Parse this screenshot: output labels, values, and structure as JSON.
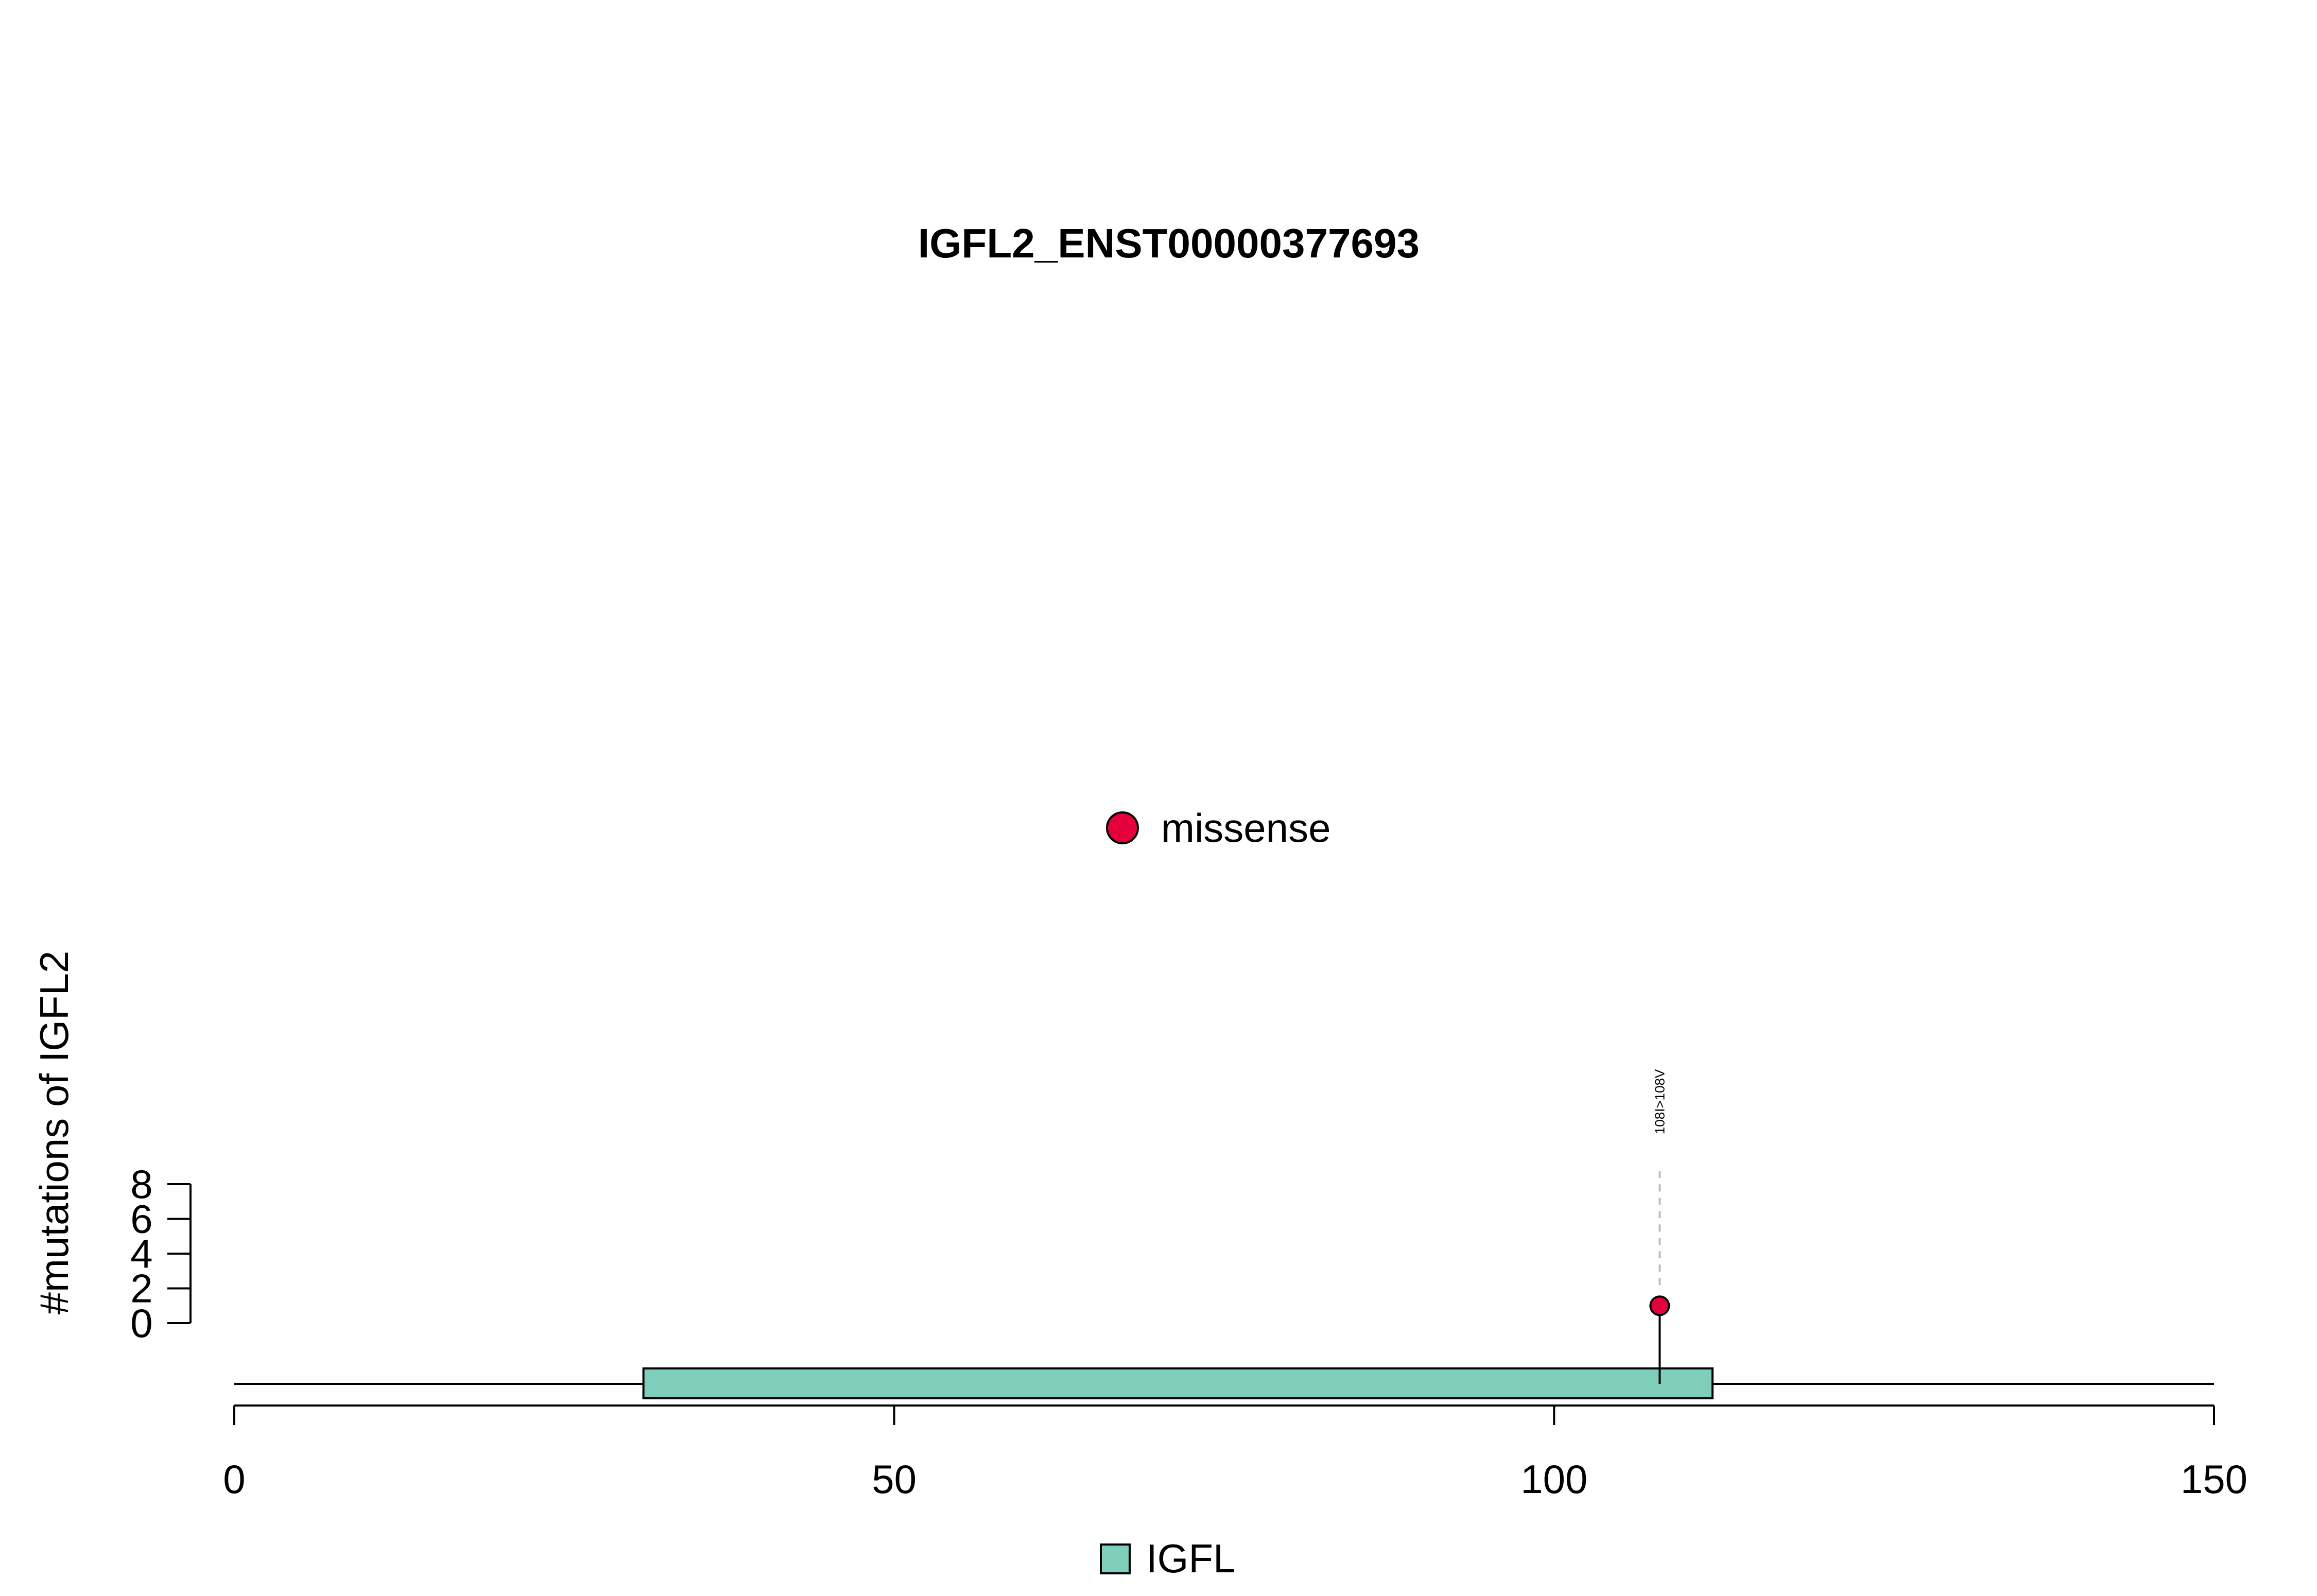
{
  "chart_data": {
    "type": "lollipop",
    "title": "IGFL2_ENST00000377693",
    "ylabel": "#mutations of IGFL2",
    "xlim": [
      0,
      150
    ],
    "x_ticks": [
      0,
      50,
      100,
      150
    ],
    "ylim": [
      0,
      8
    ],
    "y_ticks": [
      0,
      2,
      4,
      6,
      8
    ],
    "protein_length": 150,
    "domains": [
      {
        "name": "IGFL",
        "start": 31,
        "end": 112,
        "color": "#7fcdbb"
      }
    ],
    "mutations": [
      {
        "position": 108,
        "count": 1,
        "type": "missense",
        "label": "108I>108V",
        "color": "#e4003a"
      }
    ],
    "type_legend": [
      {
        "name": "missense",
        "color": "#e4003a"
      }
    ],
    "domain_legend": [
      {
        "name": "IGFL",
        "color": "#7fcdbb"
      }
    ]
  }
}
